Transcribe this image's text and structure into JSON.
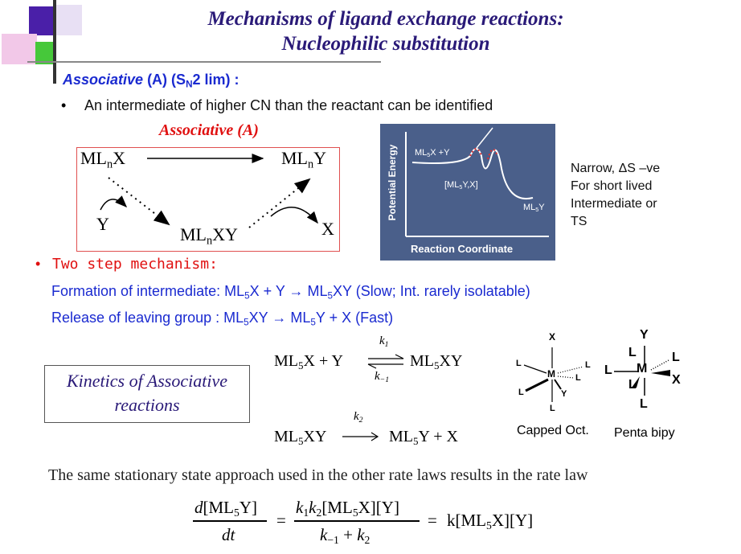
{
  "slide": {
    "title_line1": "Mechanisms of ligand exchange reactions:",
    "title_line2": "Nucleophilic substitution"
  },
  "heading": {
    "associative": "Associative",
    "a_s": " (A) (S",
    "n": "N",
    "lim": "2 lim) :"
  },
  "bullet1": "An intermediate of higher CN than the reactant can be identified",
  "scheme": {
    "title": "Associative (A)",
    "ml": "ML",
    "n": "n",
    "x": "X",
    "y": "Y",
    "xy": "XY"
  },
  "energy_plot": {
    "ylabel": "Potential Energy",
    "xlabel": "Reaction Coordinate",
    "ml": "ML",
    "five": "5",
    "start_tail": "X +Y",
    "inter_open": "[ML",
    "inter_tail": "Y,X]",
    "product_tail": "Y"
  },
  "side_note": [
    "Narrow, ΔS –ve",
    "For short lived",
    "Intermediate or",
    "TS"
  ],
  "two_step": "Two step mechanism:",
  "formation": {
    "label": "Formation of intermediate:  ML",
    "p1": "X + Y → ML",
    "p2": "XY (Slow; Int. rarely isolatable)"
  },
  "release": {
    "label": "Release of leaving group :  ML",
    "p1": "XY  → ML",
    "p2": "Y + X  (Fast)"
  },
  "kinetics_box": [
    "Kinetics of Associative",
    "reactions"
  ],
  "eq1": {
    "lhs": "ML",
    "lhs_tail": "X + Y",
    "rhs": "ML",
    "rhs_tail": "XY",
    "k_forward": "k",
    "k_forward_sub": "1",
    "k_reverse": "k",
    "k_reverse_sub": "−1"
  },
  "eq2": {
    "lhs": "ML",
    "lhs_tail": "XY",
    "rhs": "ML",
    "rhs_tail": "Y + X",
    "k": "k",
    "k_sub": "2"
  },
  "geometry": {
    "capped_label": "Capped Oct.",
    "penta_label": "Penta bipy",
    "M": "M",
    "L": "L",
    "X": "X",
    "Y": "Y"
  },
  "stationary_text": "The same stationary state approach used in the other rate laws results in the rate law",
  "rate_law": {
    "d": "d",
    "num_ml": "[ML",
    "num_close": "Y]",
    "dt": "dt",
    "eq": "=",
    "k1k2": "k",
    "one": "1",
    "two": "2",
    "mid_ml": "[ML",
    "mid_tail": "X][Y]",
    "km1": "−1",
    "plus": "+",
    "rhs": "k[ML",
    "rhs_tail": "X][Y]",
    "five": "5"
  },
  "colors": {
    "title": "#2a1a78",
    "blue_text": "#1a2ad0",
    "red_text": "#e01010",
    "plot_bg": "#4a5f8a"
  }
}
